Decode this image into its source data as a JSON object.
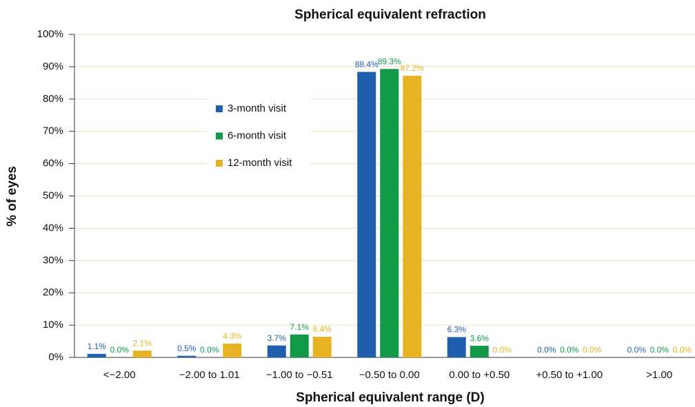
{
  "chart_data": {
    "type": "bar",
    "title": "Spherical equivalent refraction",
    "xlabel": "Spherical equivalent range (D)",
    "ylabel": "% of eyes",
    "categories": [
      "<−2.00",
      "−2.00 to 1.01",
      "−1.00 to −0.51",
      "−0.50 to 0.00",
      "0.00 to +0.50",
      "+0.50 to +1.00",
      ">1.00"
    ],
    "series": [
      {
        "name": "3-month visit",
        "color": "#1f5fad",
        "values": [
          1.1,
          0.5,
          3.7,
          88.4,
          6.3,
          0.0,
          0.0
        ],
        "value_labels": [
          "1.1%",
          "0.5%",
          "3.7%",
          "88.4%",
          "6.3%",
          "0.0%",
          "0.0%"
        ]
      },
      {
        "name": "6-month visit",
        "color": "#109a48",
        "values": [
          0.0,
          0.0,
          7.1,
          89.3,
          3.6,
          0.0,
          0.0
        ],
        "value_labels": [
          "0.0%",
          "0.0%",
          "7.1%",
          "89.3%",
          "3.6%",
          "0.0%",
          "0.0%"
        ]
      },
      {
        "name": "12-month visit",
        "color": "#e8b323",
        "values": [
          2.1,
          4.3,
          6.4,
          87.2,
          0.0,
          0.0,
          0.0
        ],
        "value_labels": [
          "2.1%",
          "4.3%",
          "6.4%",
          "87.2%",
          "0.0%",
          "0.0%",
          "0.0%"
        ]
      }
    ],
    "ylim": [
      0,
      100
    ],
    "yticks": [
      {
        "value": 0,
        "label": "0%"
      },
      {
        "value": 10,
        "label": "10%"
      },
      {
        "value": 20,
        "label": "20%"
      },
      {
        "value": 30,
        "label": "30%"
      },
      {
        "value": 40,
        "label": "40%"
      },
      {
        "value": 50,
        "label": "50%"
      },
      {
        "value": 60,
        "label": "60%"
      },
      {
        "value": 70,
        "label": "70%"
      },
      {
        "value": 80,
        "label": "80%"
      },
      {
        "value": 90,
        "label": "90%"
      },
      {
        "value": 100,
        "label": "100%"
      }
    ],
    "grid": true,
    "legend": "upper left"
  }
}
